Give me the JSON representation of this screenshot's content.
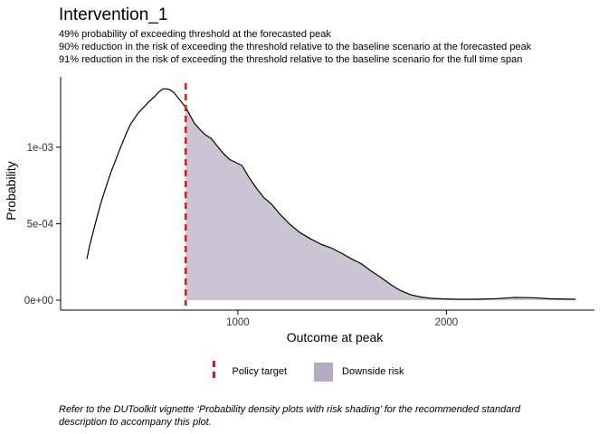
{
  "header": {
    "title": "Intervention_1",
    "subtitle": "49% probability of exceeding threshold at the forecasted peak\n90% reduction in the risk of exceeding the threshold relative to the baseline scenario at the forecasted peak\n91% reduction in the risk of exceeding the threshold relative to the baseline scenario for the full time span"
  },
  "chart_data": {
    "type": "area",
    "title": "Intervention_1",
    "xlabel": "Outcome at peak",
    "ylabel": "Probability",
    "xlim": [
      150,
      2710
    ],
    "ylim": [
      0,
      0.00146
    ],
    "grid": "off",
    "legend_position": "bottom",
    "x_ticks": [
      {
        "value": 1000,
        "label": "1000"
      },
      {
        "value": 2000,
        "label": "2000"
      }
    ],
    "y_ticks": [
      {
        "value": 0,
        "label": "0e+00"
      },
      {
        "value": 0.0005,
        "label": "5e-04"
      },
      {
        "value": 0.001,
        "label": "1e-03"
      }
    ],
    "threshold": 750,
    "stats": {
      "prob_exceed_at_peak": "49%",
      "risk_reduction_at_peak": "90%",
      "risk_reduction_full_span": "91%"
    },
    "density": [
      [
        276,
        0.00027
      ],
      [
        288,
        0.00035
      ],
      [
        305,
        0.00044
      ],
      [
        322,
        0.00053
      ],
      [
        340,
        0.00062
      ],
      [
        358,
        0.0007
      ],
      [
        375,
        0.00077
      ],
      [
        395,
        0.00085
      ],
      [
        415,
        0.00092
      ],
      [
        432,
        0.00098
      ],
      [
        450,
        0.00104
      ],
      [
        468,
        0.0011
      ],
      [
        485,
        0.00115
      ],
      [
        505,
        0.00119
      ],
      [
        520,
        0.00122
      ],
      [
        540,
        0.00125
      ],
      [
        555,
        0.00127
      ],
      [
        575,
        0.0013
      ],
      [
        600,
        0.00133
      ],
      [
        620,
        0.00136
      ],
      [
        640,
        0.00138
      ],
      [
        658,
        0.001382
      ],
      [
        675,
        0.001375
      ],
      [
        695,
        0.001355
      ],
      [
        715,
        0.00132
      ],
      [
        730,
        0.001295
      ],
      [
        750,
        0.00126
      ],
      [
        770,
        0.00121
      ],
      [
        790,
        0.00116
      ],
      [
        815,
        0.00112
      ],
      [
        845,
        0.00108
      ],
      [
        870,
        0.00106
      ],
      [
        900,
        0.00101
      ],
      [
        930,
        0.00096
      ],
      [
        960,
        0.00092
      ],
      [
        990,
        0.0009
      ],
      [
        1020,
        0.00088
      ],
      [
        1050,
        0.00081
      ],
      [
        1090,
        0.00073
      ],
      [
        1125,
        0.00067
      ],
      [
        1160,
        0.00063
      ],
      [
        1200,
        0.000565
      ],
      [
        1250,
        0.000495
      ],
      [
        1300,
        0.00044
      ],
      [
        1350,
        0.0004
      ],
      [
        1400,
        0.000365
      ],
      [
        1450,
        0.00034
      ],
      [
        1500,
        0.000305
      ],
      [
        1545,
        0.00027
      ],
      [
        1590,
        0.00024
      ],
      [
        1640,
        0.00019
      ],
      [
        1690,
        0.000145
      ],
      [
        1735,
        0.0001
      ],
      [
        1780,
        6.3e-05
      ],
      [
        1830,
        3.5e-05
      ],
      [
        1880,
        2e-05
      ],
      [
        1930,
        1.2e-05
      ],
      [
        1990,
        8e-06
      ],
      [
        2060,
        6e-06
      ],
      [
        2150,
        6e-06
      ],
      [
        2240,
        1e-05
      ],
      [
        2330,
        1.8e-05
      ],
      [
        2420,
        1.6e-05
      ],
      [
        2500,
        9e-06
      ],
      [
        2620,
        6e-06
      ]
    ]
  },
  "legend": {
    "items": [
      {
        "label": "Policy target",
        "key": "dashed-line",
        "color": "#EE1111"
      },
      {
        "label": "Downside risk",
        "key": "fill-swatch",
        "color": "#B2ABC2"
      }
    ]
  },
  "caption": {
    "text": "Refer to the DUToolkit vignette ‘Probability density plots with risk shading’ for the recommended standard description to accompany this plot."
  },
  "colors": {
    "curve": "#000000",
    "area_fill": "#CBC5D3",
    "threshold_line": "#EE1111",
    "axis": "#000000",
    "tick_text": "#333333",
    "background": "#FFFFFF"
  }
}
